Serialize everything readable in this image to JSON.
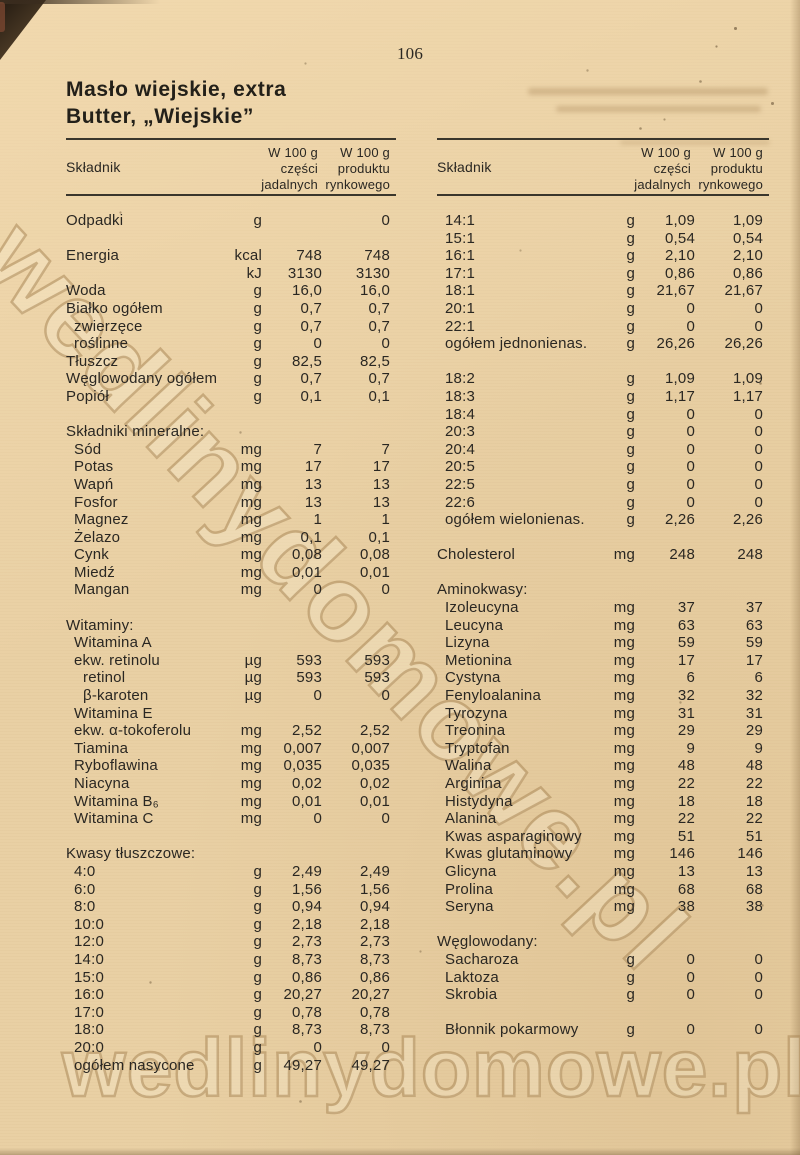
{
  "page": {
    "number": "106",
    "title_line1": "Masło wiejskie, extra",
    "title_line2": "Butter, „Wiejskie”",
    "watermark": "wedlinydomowe.pl",
    "paper_color": "#e9d0a4",
    "ink_color": "#2a2722"
  },
  "table_header": {
    "col_ingredient": "Składnik",
    "col1_l1": "W 100 g",
    "col1_l2": "części",
    "col1_l3": "jadalnych",
    "col2_l1": "W 100 g",
    "col2_l2": "produktu",
    "col2_l3": "rynkowego"
  },
  "left_table": {
    "rows": [
      {
        "label": "Odpadki",
        "unit": "g",
        "edible": "",
        "market": "0"
      },
      {
        "type": "spacer"
      },
      {
        "label": "Energia",
        "unit": "kcal",
        "edible": "748",
        "market": "748"
      },
      {
        "label": "",
        "unit": "kJ",
        "edible": "3130",
        "market": "3130"
      },
      {
        "label": "Woda",
        "unit": "g",
        "edible": "16,0",
        "market": "16,0"
      },
      {
        "label": "Białko ogółem",
        "unit": "g",
        "edible": "0,7",
        "market": "0,7"
      },
      {
        "label": "zwierzęce",
        "indent": 1,
        "unit": "g",
        "edible": "0,7",
        "market": "0,7"
      },
      {
        "label": "roślinne",
        "indent": 1,
        "unit": "g",
        "edible": "0",
        "market": "0"
      },
      {
        "label": "Tłuszcz",
        "unit": "g",
        "edible": "82,5",
        "market": "82,5"
      },
      {
        "label": "Węglowodany ogółem",
        "unit": "g",
        "edible": "0,7",
        "market": "0,7"
      },
      {
        "label": "Popiół",
        "unit": "g",
        "edible": "0,1",
        "market": "0,1"
      },
      {
        "type": "spacer"
      },
      {
        "type": "section",
        "label": "Składniki mineralne:"
      },
      {
        "label": "Sód",
        "indent": 1,
        "unit": "mg",
        "edible": "7",
        "market": "7"
      },
      {
        "label": "Potas",
        "indent": 1,
        "unit": "mg",
        "edible": "17",
        "market": "17"
      },
      {
        "label": "Wapń",
        "indent": 1,
        "unit": "mg",
        "edible": "13",
        "market": "13"
      },
      {
        "label": "Fosfor",
        "indent": 1,
        "unit": "mg",
        "edible": "13",
        "market": "13"
      },
      {
        "label": "Magnez",
        "indent": 1,
        "unit": "mg",
        "edible": "1",
        "market": "1"
      },
      {
        "label": "Żelazo",
        "indent": 1,
        "unit": "mg",
        "edible": "0,1",
        "market": "0,1"
      },
      {
        "label": "Cynk",
        "indent": 1,
        "unit": "mg",
        "edible": "0,08",
        "market": "0,08"
      },
      {
        "label": "Miedź",
        "indent": 1,
        "unit": "mg",
        "edible": "0,01",
        "market": "0,01"
      },
      {
        "label": "Mangan",
        "indent": 1,
        "unit": "mg",
        "edible": "0",
        "market": "0"
      },
      {
        "type": "spacer"
      },
      {
        "type": "section",
        "label": "Witaminy:"
      },
      {
        "label": "Witamina A",
        "indent": 1,
        "unit": "",
        "edible": "",
        "market": ""
      },
      {
        "label": "ekw. retinolu",
        "indent": 1,
        "unit": "µg",
        "edible": "593",
        "market": "593"
      },
      {
        "label": "retinol",
        "indent": 2,
        "unit": "µg",
        "edible": "593",
        "market": "593"
      },
      {
        "label": "β-karoten",
        "indent": 2,
        "unit": "µg",
        "edible": "0",
        "market": "0"
      },
      {
        "label": "Witamina E",
        "indent": 1,
        "unit": "",
        "edible": "",
        "market": ""
      },
      {
        "label": "ekw. α-tokoferolu",
        "indent": 1,
        "unit": "mg",
        "edible": "2,52",
        "market": "2,52"
      },
      {
        "label": "Tiamina",
        "indent": 1,
        "unit": "mg",
        "edible": "0,007",
        "market": "0,007"
      },
      {
        "label": "Ryboflawina",
        "indent": 1,
        "unit": "mg",
        "edible": "0,035",
        "market": "0,035"
      },
      {
        "label": "Niacyna",
        "indent": 1,
        "unit": "mg",
        "edible": "0,02",
        "market": "0,02"
      },
      {
        "label": "Witamina B₆",
        "indent": 1,
        "unit": "mg",
        "edible": "0,01",
        "market": "0,01"
      },
      {
        "label": "Witamina C",
        "indent": 1,
        "unit": "mg",
        "edible": "0",
        "market": "0"
      },
      {
        "type": "spacer"
      },
      {
        "type": "section",
        "label": "Kwasy tłuszczowe:"
      },
      {
        "label": "4:0",
        "indent": 1,
        "unit": "g",
        "edible": "2,49",
        "market": "2,49"
      },
      {
        "label": "6:0",
        "indent": 1,
        "unit": "g",
        "edible": "1,56",
        "market": "1,56"
      },
      {
        "label": "8:0",
        "indent": 1,
        "unit": "g",
        "edible": "0,94",
        "market": "0,94"
      },
      {
        "label": "10:0",
        "indent": 1,
        "unit": "g",
        "edible": "2,18",
        "market": "2,18"
      },
      {
        "label": "12:0",
        "indent": 1,
        "unit": "g",
        "edible": "2,73",
        "market": "2,73"
      },
      {
        "label": "14:0",
        "indent": 1,
        "unit": "g",
        "edible": "8,73",
        "market": "8,73"
      },
      {
        "label": "15:0",
        "indent": 1,
        "unit": "g",
        "edible": "0,86",
        "market": "0,86"
      },
      {
        "label": "16:0",
        "indent": 1,
        "unit": "g",
        "edible": "20,27",
        "market": "20,27"
      },
      {
        "label": "17:0",
        "indent": 1,
        "unit": "g",
        "edible": "0,78",
        "market": "0,78"
      },
      {
        "label": "18:0",
        "indent": 1,
        "unit": "g",
        "edible": "8,73",
        "market": "8,73"
      },
      {
        "label": "20:0",
        "indent": 1,
        "unit": "g",
        "edible": "0",
        "market": "0"
      },
      {
        "label": "ogółem nasycone",
        "indent": 1,
        "unit": "g",
        "edible": "49,27",
        "market": "49,27"
      }
    ]
  },
  "right_table": {
    "rows": [
      {
        "label": "14:1",
        "indent": 1,
        "unit": "g",
        "edible": "1,09",
        "market": "1,09"
      },
      {
        "label": "15:1",
        "indent": 1,
        "unit": "g",
        "edible": "0,54",
        "market": "0,54"
      },
      {
        "label": "16:1",
        "indent": 1,
        "unit": "g",
        "edible": "2,10",
        "market": "2,10"
      },
      {
        "label": "17:1",
        "indent": 1,
        "unit": "g",
        "edible": "0,86",
        "market": "0,86"
      },
      {
        "label": "18:1",
        "indent": 1,
        "unit": "g",
        "edible": "21,67",
        "market": "21,67"
      },
      {
        "label": "20:1",
        "indent": 1,
        "unit": "g",
        "edible": "0",
        "market": "0"
      },
      {
        "label": "22:1",
        "indent": 1,
        "unit": "g",
        "edible": "0",
        "market": "0"
      },
      {
        "label": "ogółem jednonienas.",
        "indent": 1,
        "unit": "g",
        "edible": "26,26",
        "market": "26,26"
      },
      {
        "type": "spacer"
      },
      {
        "label": "18:2",
        "indent": 1,
        "unit": "g",
        "edible": "1,09",
        "market": "1,09"
      },
      {
        "label": "18:3",
        "indent": 1,
        "unit": "g",
        "edible": "1,17",
        "market": "1,17"
      },
      {
        "label": "18:4",
        "indent": 1,
        "unit": "g",
        "edible": "0",
        "market": "0"
      },
      {
        "label": "20:3",
        "indent": 1,
        "unit": "g",
        "edible": "0",
        "market": "0"
      },
      {
        "label": "20:4",
        "indent": 1,
        "unit": "g",
        "edible": "0",
        "market": "0"
      },
      {
        "label": "20:5",
        "indent": 1,
        "unit": "g",
        "edible": "0",
        "market": "0"
      },
      {
        "label": "22:5",
        "indent": 1,
        "unit": "g",
        "edible": "0",
        "market": "0"
      },
      {
        "label": "22:6",
        "indent": 1,
        "unit": "g",
        "edible": "0",
        "market": "0"
      },
      {
        "label": "ogółem wielonienas.",
        "indent": 1,
        "unit": "g",
        "edible": "2,26",
        "market": "2,26"
      },
      {
        "type": "spacer"
      },
      {
        "label": "Cholesterol",
        "unit": "mg",
        "edible": "248",
        "market": "248"
      },
      {
        "type": "spacer"
      },
      {
        "type": "section",
        "label": "Aminokwasy:"
      },
      {
        "label": "Izoleucyna",
        "indent": 1,
        "unit": "mg",
        "edible": "37",
        "market": "37"
      },
      {
        "label": "Leucyna",
        "indent": 1,
        "unit": "mg",
        "edible": "63",
        "market": "63"
      },
      {
        "label": "Lizyna",
        "indent": 1,
        "unit": "mg",
        "edible": "59",
        "market": "59"
      },
      {
        "label": "Metionina",
        "indent": 1,
        "unit": "mg",
        "edible": "17",
        "market": "17"
      },
      {
        "label": "Cystyna",
        "indent": 1,
        "unit": "mg",
        "edible": "6",
        "market": "6"
      },
      {
        "label": "Fenyloalanina",
        "indent": 1,
        "unit": "mg",
        "edible": "32",
        "market": "32"
      },
      {
        "label": "Tyrozyna",
        "indent": 1,
        "unit": "mg",
        "edible": "31",
        "market": "31"
      },
      {
        "label": "Treonina",
        "indent": 1,
        "unit": "mg",
        "edible": "29",
        "market": "29"
      },
      {
        "label": "Tryptofan",
        "indent": 1,
        "unit": "mg",
        "edible": "9",
        "market": "9"
      },
      {
        "label": "Walina",
        "indent": 1,
        "unit": "mg",
        "edible": "48",
        "market": "48"
      },
      {
        "label": "Arginina",
        "indent": 1,
        "unit": "mg",
        "edible": "22",
        "market": "22"
      },
      {
        "label": "Histydyna",
        "indent": 1,
        "unit": "mg",
        "edible": "18",
        "market": "18"
      },
      {
        "label": "Alanina",
        "indent": 1,
        "unit": "mg",
        "edible": "22",
        "market": "22"
      },
      {
        "label": "Kwas asparaginowy",
        "indent": 1,
        "unit": "mg",
        "edible": "51",
        "market": "51"
      },
      {
        "label": "Kwas glutaminowy",
        "indent": 1,
        "unit": "mg",
        "edible": "146",
        "market": "146"
      },
      {
        "label": "Glicyna",
        "indent": 1,
        "unit": "mg",
        "edible": "13",
        "market": "13"
      },
      {
        "label": "Prolina",
        "indent": 1,
        "unit": "mg",
        "edible": "68",
        "market": "68"
      },
      {
        "label": "Seryna",
        "indent": 1,
        "unit": "mg",
        "edible": "38",
        "market": "38"
      },
      {
        "type": "spacer"
      },
      {
        "type": "section",
        "label": "Węglowodany:"
      },
      {
        "label": "Sacharoza",
        "indent": 1,
        "unit": "g",
        "edible": "0",
        "market": "0"
      },
      {
        "label": "Laktoza",
        "indent": 1,
        "unit": "g",
        "edible": "0",
        "market": "0"
      },
      {
        "label": "Skrobia",
        "indent": 1,
        "unit": "g",
        "edible": "0",
        "market": "0"
      },
      {
        "type": "spacer"
      },
      {
        "label": "Błonnik pokarmowy",
        "indent": 1,
        "unit": "g",
        "edible": "0",
        "market": "0"
      }
    ]
  }
}
